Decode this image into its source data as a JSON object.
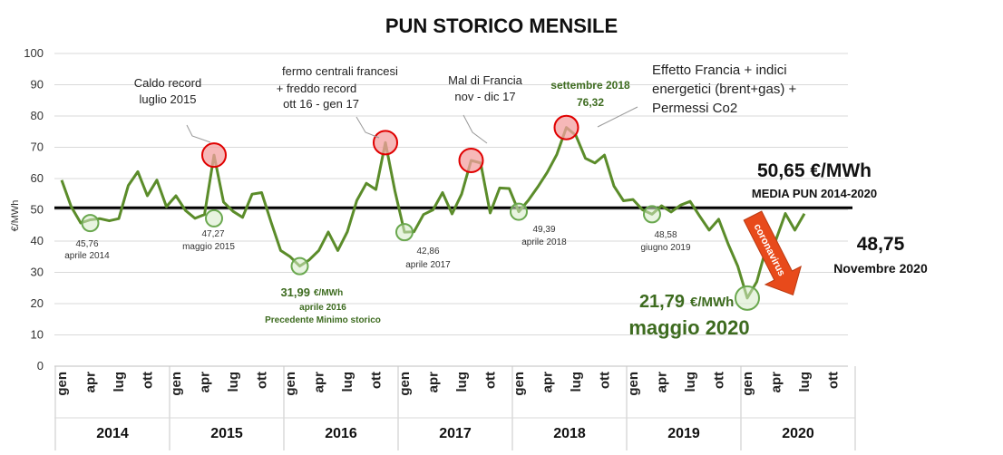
{
  "chart_data": {
    "type": "line",
    "title": "PUN STORICO MENSILE",
    "ylabel": "€/MWh",
    "ylim": [
      0,
      100
    ],
    "yticks": [
      "0",
      "10",
      "20",
      "30",
      "40",
      "50",
      "60",
      "70",
      "80",
      "90",
      "100"
    ],
    "month_ticks": [
      "gen",
      "apr",
      "lug",
      "ott"
    ],
    "years": [
      "2014",
      "2015",
      "2016",
      "2017",
      "2018",
      "2019",
      "2020"
    ],
    "series": [
      {
        "values": [
          59.5,
          51.0,
          45.8,
          46.8,
          47.2,
          46.5,
          47.2,
          57.8,
          62.2,
          54.5,
          59.5,
          51.0,
          54.5,
          49.8,
          47.27,
          48.5,
          67.5,
          52.5,
          49.5,
          47.6,
          55.0,
          55.5,
          46.0,
          37.0,
          35.0,
          31.99,
          34.0,
          37.0,
          42.9,
          37.0,
          43.0,
          53.0,
          58.5,
          56.5,
          71.5,
          56.0,
          42.86,
          43.0,
          48.5,
          50.0,
          55.5,
          48.7,
          55.0,
          65.8,
          65.0,
          49.0,
          57.0,
          56.8,
          49.39,
          53.0,
          57.3,
          62.0,
          67.7,
          76.32,
          73.8,
          66.5,
          65.0,
          67.5,
          57.6,
          52.9,
          53.3,
          50.0,
          48.58,
          51.3,
          49.3,
          51.5,
          52.7,
          48.0,
          43.5,
          47.0,
          39.0,
          32.0,
          21.79,
          27.0,
          38.0,
          40.3,
          48.8,
          43.5,
          48.75
        ],
        "color": "#5b8c2a"
      }
    ],
    "reference_line": {
      "value": 50.65,
      "label_value": "50,65 €/MWh",
      "label_text": "MEDIA PUN 2014-2020"
    },
    "annotations": {
      "caldo": [
        "Caldo record",
        "luglio 2015"
      ],
      "fermo": [
        "fermo centrali francesi",
        "+ freddo record",
        "ott 16 - gen 17"
      ],
      "mal": [
        "Mal di Francia",
        "nov - dic 17"
      ],
      "sett": [
        "settembre 2018",
        "76,32"
      ],
      "effetto": [
        "Effetto Francia + indici",
        "energetici (brent+gas) +",
        "Permessi Co2"
      ],
      "min2014": [
        "45,76",
        "aprile 2014"
      ],
      "min2015": [
        "47,27",
        "maggio 2015"
      ],
      "min2016": [
        "31,99",
        "€/MWh",
        "aprile 2016",
        "Precedente Minimo storico"
      ],
      "min2017": [
        "42,86",
        "aprile 2017"
      ],
      "min2018": [
        "49,39",
        "aprile 2018"
      ],
      "min2019": [
        "48,58",
        "giugno 2019"
      ],
      "min2020": [
        "21,79",
        "€/MWh",
        "maggio 2020"
      ],
      "corona": "coronavirus",
      "last_value": "48,75",
      "last_label": "Novembre 2020"
    }
  }
}
